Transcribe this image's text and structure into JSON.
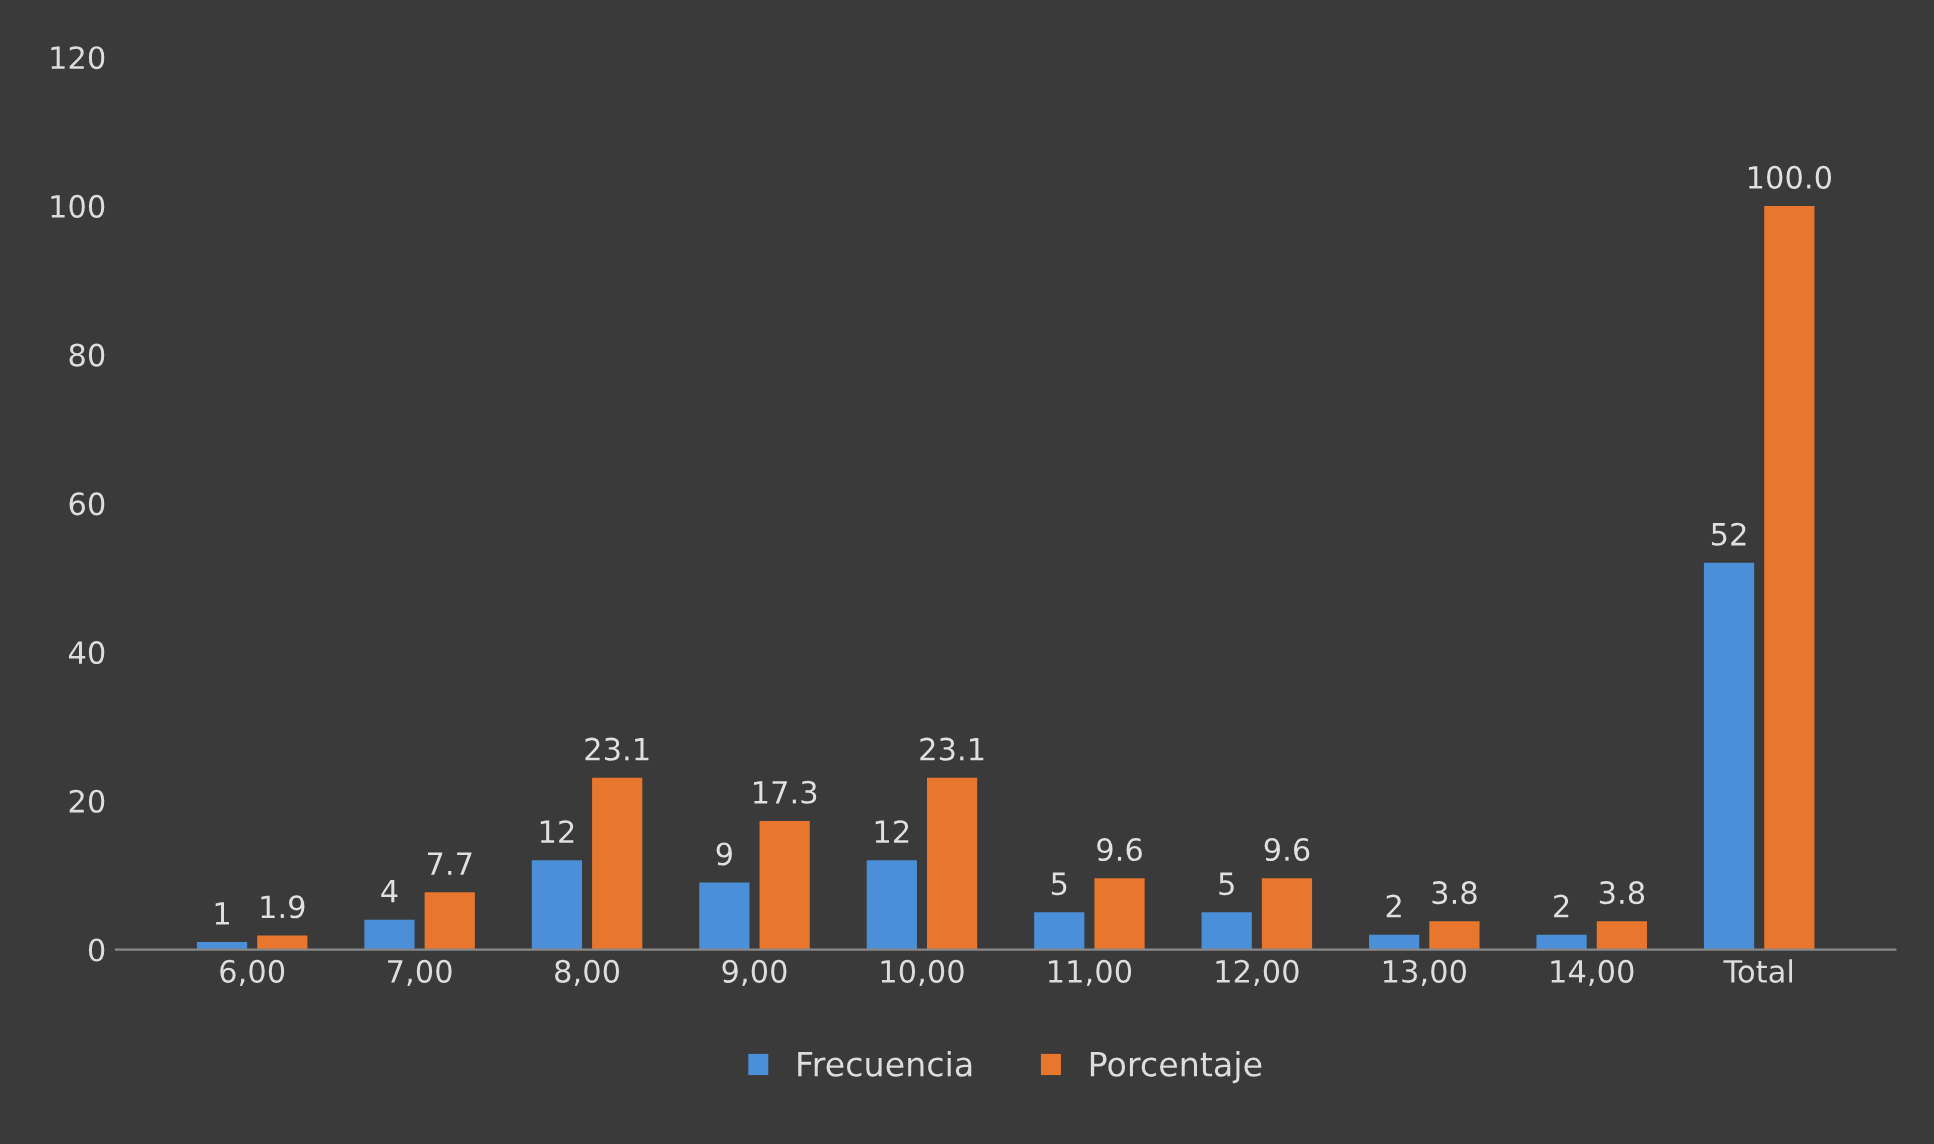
{
  "chart_data": {
    "type": "bar",
    "categories": [
      "6,00",
      "7,00",
      "8,00",
      "9,00",
      "10,00",
      "11,00",
      "12,00",
      "13,00",
      "14,00",
      "Total"
    ],
    "series": [
      {
        "name": "Frecuencia",
        "color": "#4a8fd8",
        "values": [
          1,
          4,
          12,
          9,
          12,
          5,
          5,
          2,
          2,
          52
        ],
        "value_labels": [
          "1",
          "4",
          "12",
          "9",
          "12",
          "5",
          "5",
          "2",
          "2",
          "52"
        ]
      },
      {
        "name": "Porcentaje",
        "color": "#e8762d",
        "values": [
          1.9,
          7.7,
          23.1,
          17.3,
          23.1,
          9.6,
          9.6,
          3.8,
          3.8,
          100.0
        ],
        "value_labels": [
          "1.9",
          "7.7",
          "23.1",
          "17.3",
          "23.1",
          "9.6",
          "9.6",
          "3.8",
          "3.8",
          "100.0"
        ]
      }
    ],
    "ylim": [
      0,
      120
    ],
    "yticks": [
      0,
      20,
      40,
      60,
      80,
      100,
      120
    ],
    "grid": false,
    "legend": "bottom"
  }
}
